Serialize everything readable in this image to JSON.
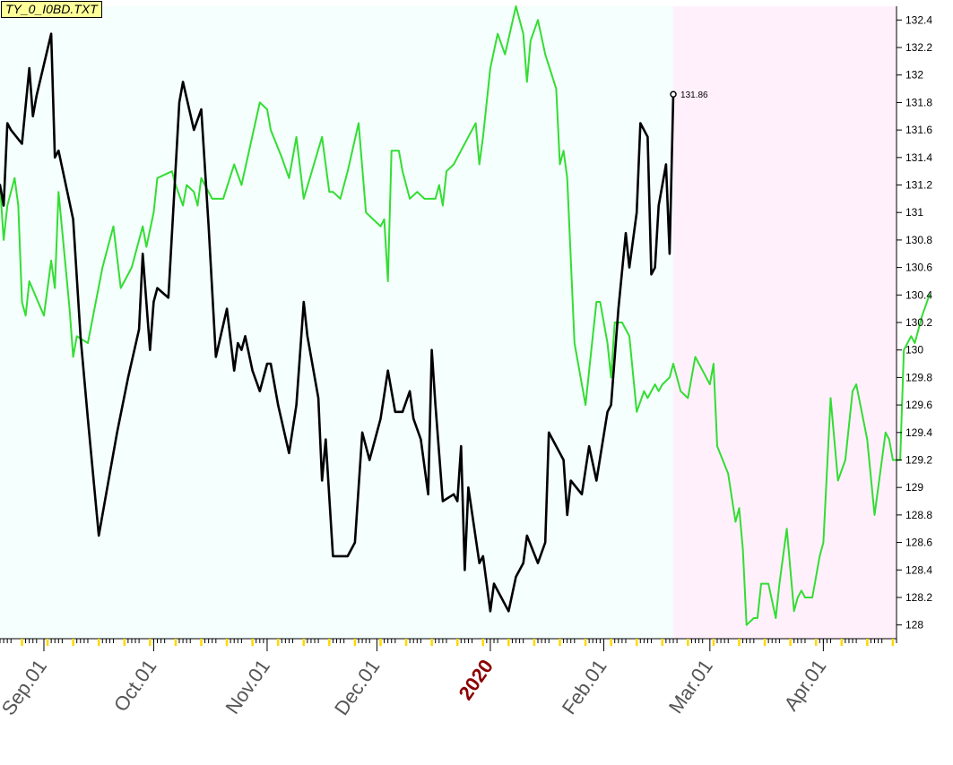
{
  "symbol": "TY_0_I0BD.TXT",
  "colors": {
    "background": "#ffffff",
    "history_bg": "#f5fffd",
    "forecast_bg": "#fff0fc",
    "price_line": "#000000",
    "projection_line": "#33dd33",
    "year_label": "#8b0000",
    "month_label": "#555555",
    "tick_major": "#ffd700"
  },
  "chart_data": {
    "type": "line",
    "title": "",
    "xlabel": "",
    "ylabel": "",
    "x_range": [
      "2019-08-20",
      "2020-04-21"
    ],
    "forecast_start": "2020-02-20",
    "ylim": [
      127.9,
      132.5
    ],
    "y_ticks": [
      "132.4",
      "132.2",
      "132",
      "131.8",
      "131.6",
      "131.4",
      "131.2",
      "131",
      "130.8",
      "130.6",
      "130.4",
      "130.2",
      "130",
      "129.8",
      "129.6",
      "129.4",
      "129.2",
      "129",
      "128.8",
      "128.6",
      "128.4",
      "128.2",
      "128"
    ],
    "x_tick_labels": [
      {
        "label": "Sep.01",
        "date": "2019-09-01",
        "year": false
      },
      {
        "label": "Oct.01",
        "date": "2019-10-01",
        "year": false
      },
      {
        "label": "Nov.01",
        "date": "2019-11-01",
        "year": false
      },
      {
        "label": "Dec.01",
        "date": "2019-12-01",
        "year": false
      },
      {
        "label": "2020",
        "date": "2020-01-01",
        "year": true
      },
      {
        "label": "Feb.01",
        "date": "2020-02-01",
        "year": false
      },
      {
        "label": "Mar.01",
        "date": "2020-03-01",
        "year": false
      },
      {
        "label": "Apr.01",
        "date": "2020-04-01",
        "year": false
      }
    ],
    "last_price": {
      "label": "131.86",
      "date": "2020-02-20",
      "value": 131.86
    },
    "series": [
      {
        "points": [
          [
            "2019-08-20",
            131.2
          ],
          [
            "2019-08-21",
            131.05
          ],
          [
            "2019-08-22",
            131.65
          ],
          [
            "2019-08-23",
            131.6
          ],
          [
            "2019-08-26",
            131.5
          ],
          [
            "2019-08-28",
            132.05
          ],
          [
            "2019-08-29",
            131.7
          ],
          [
            "2019-08-30",
            131.85
          ],
          [
            "2019-09-03",
            132.3
          ],
          [
            "2019-09-04",
            131.4
          ],
          [
            "2019-09-05",
            131.45
          ],
          [
            "2019-09-09",
            130.95
          ],
          [
            "2019-09-11",
            130.1
          ],
          [
            "2019-09-13",
            129.5
          ],
          [
            "2019-09-16",
            128.65
          ],
          [
            "2019-09-19",
            129.1
          ],
          [
            "2019-09-21",
            129.4
          ],
          [
            "2019-09-24",
            129.8
          ],
          [
            "2019-09-27",
            130.15
          ],
          [
            "2019-09-28",
            130.7
          ],
          [
            "2019-09-30",
            130.0
          ],
          [
            "2019-10-01",
            130.35
          ],
          [
            "2019-10-02",
            130.45
          ],
          [
            "2019-10-05",
            130.38
          ],
          [
            "2019-10-08",
            131.8
          ],
          [
            "2019-10-09",
            131.95
          ],
          [
            "2019-10-12",
            131.6
          ],
          [
            "2019-10-14",
            131.75
          ],
          [
            "2019-10-16",
            130.9
          ],
          [
            "2019-10-18",
            129.95
          ],
          [
            "2019-10-21",
            130.3
          ],
          [
            "2019-10-23",
            129.85
          ],
          [
            "2019-10-24",
            130.05
          ],
          [
            "2019-10-25",
            130.0
          ],
          [
            "2019-10-26",
            130.1
          ],
          [
            "2019-10-28",
            129.85
          ],
          [
            "2019-10-30",
            129.7
          ],
          [
            "2019-11-01",
            129.9
          ],
          [
            "2019-11-02",
            129.9
          ],
          [
            "2019-11-04",
            129.6
          ],
          [
            "2019-11-07",
            129.25
          ],
          [
            "2019-11-09",
            129.6
          ],
          [
            "2019-11-11",
            130.35
          ],
          [
            "2019-11-12",
            130.1
          ],
          [
            "2019-11-15",
            129.65
          ],
          [
            "2019-11-16",
            129.05
          ],
          [
            "2019-11-17",
            129.35
          ],
          [
            "2019-11-19",
            128.5
          ],
          [
            "2019-11-23",
            128.5
          ],
          [
            "2019-11-25",
            128.6
          ],
          [
            "2019-11-27",
            129.4
          ],
          [
            "2019-11-29",
            129.2
          ],
          [
            "2019-12-02",
            129.5
          ],
          [
            "2019-12-04",
            129.85
          ],
          [
            "2019-12-06",
            129.55
          ],
          [
            "2019-12-08",
            129.55
          ],
          [
            "2019-12-10",
            129.7
          ],
          [
            "2019-12-11",
            129.5
          ],
          [
            "2019-12-13",
            129.35
          ],
          [
            "2019-12-15",
            128.95
          ],
          [
            "2019-12-16",
            130.0
          ],
          [
            "2019-12-17",
            129.6
          ],
          [
            "2019-12-19",
            128.9
          ],
          [
            "2019-12-22",
            128.95
          ],
          [
            "2019-12-23",
            128.9
          ],
          [
            "2019-12-24",
            129.3
          ],
          [
            "2019-12-25",
            128.4
          ],
          [
            "2019-12-26",
            129.0
          ],
          [
            "2019-12-29",
            128.45
          ],
          [
            "2019-12-30",
            128.5
          ],
          [
            "2020-01-01",
            128.1
          ],
          [
            "2020-01-02",
            128.3
          ],
          [
            "2020-01-06",
            128.1
          ],
          [
            "2020-01-08",
            128.35
          ],
          [
            "2020-01-10",
            128.45
          ],
          [
            "2020-01-11",
            128.65
          ],
          [
            "2020-01-14",
            128.45
          ],
          [
            "2020-01-16",
            128.6
          ],
          [
            "2020-01-17",
            129.4
          ],
          [
            "2020-01-19",
            129.3
          ],
          [
            "2020-01-21",
            129.2
          ],
          [
            "2020-01-22",
            128.8
          ],
          [
            "2020-01-23",
            129.05
          ],
          [
            "2020-01-26",
            128.95
          ],
          [
            "2020-01-28",
            129.3
          ],
          [
            "2020-01-30",
            129.05
          ],
          [
            "2020-02-02",
            129.55
          ],
          [
            "2020-02-03",
            129.6
          ],
          [
            "2020-02-05",
            130.3
          ],
          [
            "2020-02-07",
            130.85
          ],
          [
            "2020-02-08",
            130.6
          ],
          [
            "2020-02-10",
            131.0
          ],
          [
            "2020-02-11",
            131.65
          ],
          [
            "2020-02-13",
            131.55
          ],
          [
            "2020-02-14",
            130.55
          ],
          [
            "2020-02-15",
            130.6
          ],
          [
            "2020-02-16",
            131.05
          ],
          [
            "2020-02-18",
            131.35
          ],
          [
            "2020-02-19",
            130.7
          ],
          [
            "2020-02-20",
            131.86
          ]
        ]
      },
      {
        "points": [
          [
            "2019-08-20",
            131.2
          ],
          [
            "2019-08-21",
            130.8
          ],
          [
            "2019-08-22",
            131.05
          ],
          [
            "2019-08-24",
            131.25
          ],
          [
            "2019-08-25",
            131.05
          ],
          [
            "2019-08-26",
            130.35
          ],
          [
            "2019-08-27",
            130.25
          ],
          [
            "2019-08-28",
            130.5
          ],
          [
            "2019-09-01",
            130.25
          ],
          [
            "2019-09-03",
            130.65
          ],
          [
            "2019-09-04",
            130.45
          ],
          [
            "2019-09-05",
            131.15
          ],
          [
            "2019-09-08",
            130.3
          ],
          [
            "2019-09-09",
            129.95
          ],
          [
            "2019-09-10",
            130.1
          ],
          [
            "2019-09-13",
            130.05
          ],
          [
            "2019-09-17",
            130.6
          ],
          [
            "2019-09-20",
            130.9
          ],
          [
            "2019-09-22",
            130.45
          ],
          [
            "2019-09-25",
            130.6
          ],
          [
            "2019-09-28",
            130.9
          ],
          [
            "2019-09-29",
            130.75
          ],
          [
            "2019-10-01",
            131.0
          ],
          [
            "2019-10-02",
            131.25
          ],
          [
            "2019-10-06",
            131.3
          ],
          [
            "2019-10-07",
            131.2
          ],
          [
            "2019-10-09",
            131.05
          ],
          [
            "2019-10-10",
            131.2
          ],
          [
            "2019-10-12",
            131.15
          ],
          [
            "2019-10-13",
            131.05
          ],
          [
            "2019-10-14",
            131.25
          ],
          [
            "2019-10-17",
            131.1
          ],
          [
            "2019-10-20",
            131.1
          ],
          [
            "2019-10-23",
            131.35
          ],
          [
            "2019-10-25",
            131.2
          ],
          [
            "2019-10-30",
            131.8
          ],
          [
            "2019-11-01",
            131.75
          ],
          [
            "2019-11-02",
            131.6
          ],
          [
            "2019-11-05",
            131.4
          ],
          [
            "2019-11-07",
            131.25
          ],
          [
            "2019-11-09",
            131.55
          ],
          [
            "2019-11-11",
            131.1
          ],
          [
            "2019-11-16",
            131.55
          ],
          [
            "2019-11-18",
            131.15
          ],
          [
            "2019-11-19",
            131.15
          ],
          [
            "2019-11-21",
            131.1
          ],
          [
            "2019-11-23",
            131.3
          ],
          [
            "2019-11-26",
            131.65
          ],
          [
            "2019-11-28",
            131.0
          ],
          [
            "2019-11-30",
            130.95
          ],
          [
            "2019-12-02",
            130.9
          ],
          [
            "2019-12-03",
            130.95
          ],
          [
            "2019-12-04",
            130.5
          ],
          [
            "2019-12-05",
            131.45
          ],
          [
            "2019-12-07",
            131.45
          ],
          [
            "2019-12-08",
            131.3
          ],
          [
            "2019-12-10",
            131.1
          ],
          [
            "2019-12-12",
            131.15
          ],
          [
            "2019-12-14",
            131.1
          ],
          [
            "2019-12-17",
            131.1
          ],
          [
            "2019-12-18",
            131.2
          ],
          [
            "2019-12-19",
            131.05
          ],
          [
            "2019-12-20",
            131.3
          ],
          [
            "2019-12-22",
            131.35
          ],
          [
            "2019-12-26",
            131.55
          ],
          [
            "2019-12-28",
            131.65
          ],
          [
            "2019-12-29",
            131.35
          ],
          [
            "2019-12-30",
            131.55
          ],
          [
            "2020-01-01",
            132.05
          ],
          [
            "2020-01-03",
            132.3
          ],
          [
            "2020-01-05",
            132.15
          ],
          [
            "2020-01-08",
            132.5
          ],
          [
            "2020-01-10",
            132.3
          ],
          [
            "2020-01-11",
            131.95
          ],
          [
            "2020-01-12",
            132.25
          ],
          [
            "2020-01-14",
            132.4
          ],
          [
            "2020-01-16",
            132.15
          ],
          [
            "2020-01-19",
            131.9
          ],
          [
            "2020-01-20",
            131.35
          ],
          [
            "2020-01-21",
            131.45
          ],
          [
            "2020-01-22",
            131.25
          ],
          [
            "2020-01-24",
            130.05
          ],
          [
            "2020-01-27",
            129.6
          ],
          [
            "2020-01-29",
            130.1
          ],
          [
            "2020-01-30",
            130.35
          ],
          [
            "2020-01-31",
            130.35
          ],
          [
            "2020-02-02",
            130.05
          ],
          [
            "2020-02-03",
            129.8
          ],
          [
            "2020-02-04",
            130.2
          ],
          [
            "2020-02-06",
            130.2
          ],
          [
            "2020-02-08",
            130.1
          ],
          [
            "2020-02-10",
            129.55
          ],
          [
            "2020-02-12",
            129.7
          ],
          [
            "2020-02-13",
            129.65
          ],
          [
            "2020-02-15",
            129.75
          ],
          [
            "2020-02-16",
            129.7
          ],
          [
            "2020-02-17",
            129.75
          ],
          [
            "2020-02-19",
            129.8
          ],
          [
            "2020-02-20",
            129.9
          ],
          [
            "2020-02-22",
            129.7
          ],
          [
            "2020-02-24",
            129.65
          ],
          [
            "2020-02-26",
            129.95
          ],
          [
            "2020-02-28",
            129.85
          ],
          [
            "2020-03-01",
            129.75
          ],
          [
            "2020-03-02",
            129.9
          ],
          [
            "2020-03-03",
            129.3
          ],
          [
            "2020-03-06",
            129.1
          ],
          [
            "2020-03-08",
            128.75
          ],
          [
            "2020-03-09",
            128.85
          ],
          [
            "2020-03-10",
            128.55
          ],
          [
            "2020-03-11",
            128.0
          ],
          [
            "2020-03-13",
            128.05
          ],
          [
            "2020-03-14",
            128.05
          ],
          [
            "2020-03-15",
            128.3
          ],
          [
            "2020-03-17",
            128.3
          ],
          [
            "2020-03-19",
            128.05
          ],
          [
            "2020-03-20",
            128.3
          ],
          [
            "2020-03-22",
            128.7
          ],
          [
            "2020-03-24",
            128.1
          ],
          [
            "2020-03-25",
            128.2
          ],
          [
            "2020-03-26",
            128.25
          ],
          [
            "2020-03-27",
            128.2
          ],
          [
            "2020-03-29",
            128.2
          ],
          [
            "2020-03-31",
            128.5
          ],
          [
            "2020-04-01",
            128.6
          ],
          [
            "2020-04-03",
            129.65
          ],
          [
            "2020-04-05",
            129.05
          ],
          [
            "2020-04-07",
            129.2
          ],
          [
            "2020-04-09",
            129.7
          ],
          [
            "2020-04-10",
            129.75
          ],
          [
            "2020-04-13",
            129.35
          ],
          [
            "2020-04-15",
            128.8
          ],
          [
            "2020-04-18",
            129.4
          ],
          [
            "2020-04-19",
            129.35
          ],
          [
            "2020-04-20",
            129.2
          ],
          [
            "2020-04-22",
            129.2
          ],
          [
            "2020-04-23",
            130.0
          ],
          [
            "2020-04-25",
            130.1
          ],
          [
            "2020-04-26",
            130.05
          ],
          [
            "2020-04-28",
            130.25
          ],
          [
            "2020-04-30",
            130.4
          ]
        ]
      }
    ]
  }
}
